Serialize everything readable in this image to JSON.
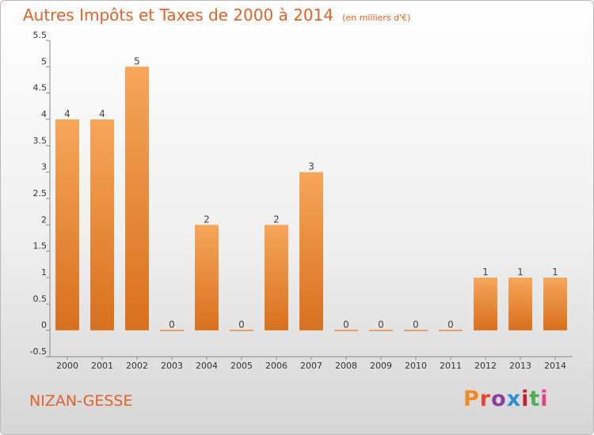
{
  "header": {
    "title": "Autres Impôts et Taxes de 2000 à 2014",
    "unit": "(en milliers d'€)"
  },
  "footer": {
    "commune": "NIZAN-GESSE",
    "brand": "Proxiti",
    "brand_colors": [
      "#f08a24",
      "#e9462f",
      "#8a3fa0",
      "#2a8fd4",
      "#c9202f",
      "#4caf50",
      "#e83e8c"
    ]
  },
  "chart_data": {
    "type": "bar",
    "categories": [
      "2000",
      "2001",
      "2002",
      "2003",
      "2004",
      "2005",
      "2006",
      "2007",
      "2008",
      "2009",
      "2010",
      "2011",
      "2012",
      "2013",
      "2014"
    ],
    "values": [
      4,
      4,
      5,
      0,
      2,
      0,
      2,
      3,
      0,
      0,
      0,
      0,
      1,
      1,
      1
    ],
    "value_labels": [
      "4",
      "4",
      "5",
      "0",
      "2",
      "0",
      "2",
      "3",
      "0",
      "0",
      "0",
      "0",
      "1",
      "1",
      "1"
    ],
    "title": "Autres Impôts et Taxes de 2000 à 2014",
    "xlabel": "",
    "ylabel": "",
    "ylim": [
      -0.5,
      5.5
    ],
    "yticks": [
      -0.5,
      0,
      0.5,
      1,
      1.5,
      2,
      2.5,
      3,
      3.5,
      4,
      4.5,
      5,
      5.5
    ],
    "ytick_labels": [
      "-0.5",
      "0",
      "0.5",
      "1",
      "1.5",
      "2",
      "2.5",
      "3",
      "3.5",
      "4",
      "4.5",
      "5",
      "5.5"
    ],
    "grid": false,
    "bar_color_top": "#f6a65a",
    "bar_color_bottom": "#d8701e"
  }
}
